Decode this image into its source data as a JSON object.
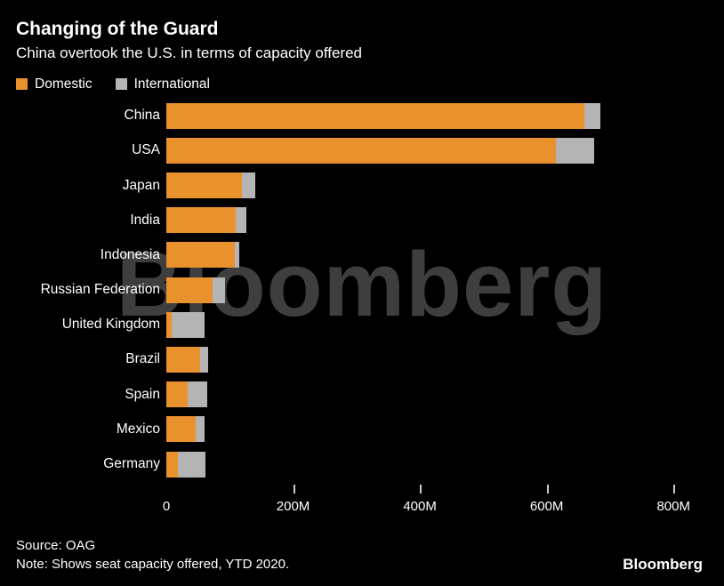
{
  "header": {
    "title": "Changing of the Guard",
    "subtitle": "China overtook the U.S. in terms of capacity offered"
  },
  "legend": [
    {
      "label": "Domestic",
      "color": "#e8912d"
    },
    {
      "label": "International",
      "color": "#b4b4b4"
    }
  ],
  "chart_data": {
    "type": "bar",
    "orientation": "horizontal",
    "stacked": true,
    "title": "Changing of the Guard",
    "subtitle": "China overtook the U.S. in terms of capacity offered",
    "unit": "seats (millions)",
    "categories": [
      "China",
      "USA",
      "Japan",
      "India",
      "Indonesia",
      "Russian Federation",
      "United Kingdom",
      "Brazil",
      "Spain",
      "Mexico",
      "Germany"
    ],
    "series": [
      {
        "name": "Domestic",
        "color": "#e8912d",
        "values": [
          660,
          615,
          119,
          109,
          108,
          73,
          8,
          53,
          34,
          46,
          18
        ]
      },
      {
        "name": "International",
        "color": "#b4b4b4",
        "values": [
          25,
          60,
          21,
          17,
          7,
          19,
          52,
          13,
          30,
          14,
          44
        ]
      }
    ],
    "x_ticks": [
      {
        "value": 0,
        "label": "0"
      },
      {
        "value": 200,
        "label": "200M"
      },
      {
        "value": 400,
        "label": "400M"
      },
      {
        "value": 600,
        "label": "600M"
      },
      {
        "value": 800,
        "label": "800M"
      }
    ],
    "axis_max": 846,
    "xlim": [
      0,
      846
    ],
    "grid": false,
    "legend_position": "top"
  },
  "watermark": "Bloomberg",
  "footer": {
    "source": "Source: OAG",
    "note": "Note: Shows seat capacity offered, YTD 2020.",
    "brand": "Bloomberg"
  },
  "colors": {
    "background": "#000000",
    "text": "#ffffff",
    "domestic": "#e8912d",
    "international": "#b4b4b4",
    "watermark": "#3e3e3e"
  }
}
